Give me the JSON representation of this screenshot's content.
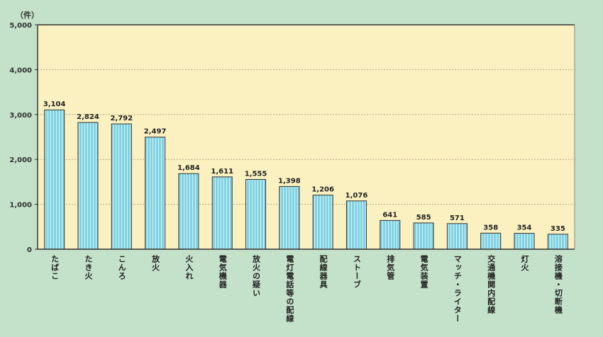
{
  "chart_data": {
    "type": "bar",
    "title": "",
    "xlabel": "",
    "ylabel": "（件）",
    "ylim": [
      0,
      5000
    ],
    "yticks": [
      "0",
      "1,000",
      "2,000",
      "3,000",
      "4,000",
      "5,000"
    ],
    "ytick_values": [
      0,
      1000,
      2000,
      3000,
      4000,
      5000
    ],
    "grid": true,
    "categories": [
      "たばこ",
      "たき火",
      "こんろ",
      "放火",
      "火入れ",
      "電気機器",
      "放火の疑い",
      "電灯電話等の配線",
      "配線器具",
      "ストーブ",
      "排気管",
      "電気装置",
      "マッチ・ライター",
      "交通機関内配線",
      "灯火",
      "溶接機・切断機"
    ],
    "values": [
      3104,
      2824,
      2792,
      2497,
      1684,
      1611,
      1555,
      1398,
      1206,
      1076,
      641,
      585,
      571,
      358,
      354,
      335
    ],
    "value_labels": [
      "3,104",
      "2,824",
      "2,792",
      "2,497",
      "1,684",
      "1,611",
      "1,555",
      "1,398",
      "1,206",
      "1,076",
      "641",
      "585",
      "571",
      "358",
      "354",
      "335"
    ],
    "colors": {
      "background": "#c4e1c9",
      "plot_background": "#fbf0c0",
      "bar": "#7fd2e2",
      "bar_stripe": "#ffffff",
      "bar_border": "#333333"
    }
  }
}
